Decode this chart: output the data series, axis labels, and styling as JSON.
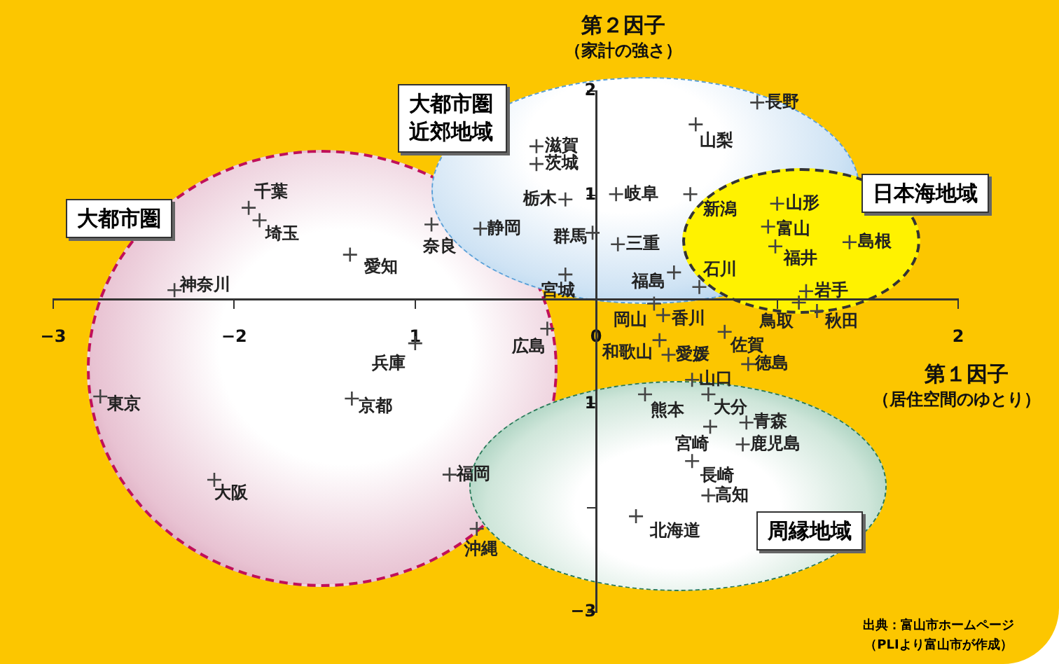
{
  "chart_data": {
    "type": "scatter",
    "xlabel": "第１因子",
    "ylabel": "第２因子",
    "xlim": [
      -3,
      2
    ],
    "ylim": [
      -3,
      2
    ],
    "xticks": [
      {
        "value": -3,
        "label": "−3"
      },
      {
        "value": -2,
        "label": "−2"
      },
      {
        "value": -1,
        "label": "1"
      },
      {
        "value": 0,
        "label": "0"
      },
      {
        "value": 1,
        "label": null
      },
      {
        "value": 2,
        "label": "2"
      }
    ],
    "yticks": [
      {
        "value": -3,
        "label": "−3"
      },
      {
        "value": -2,
        "label": null
      },
      {
        "value": -1,
        "label": "1"
      },
      {
        "value": 0,
        "label": null
      },
      {
        "value": 1,
        "label": "1"
      },
      {
        "value": 2,
        "label": "2"
      }
    ],
    "grid": false,
    "legend": false,
    "marker": "cross",
    "series": [
      {
        "color": "#444444",
        "x": [
          -1.92,
          -1.86,
          -1.36,
          -0.91,
          -0.64,
          -2.33,
          -0.27,
          -1.0,
          -2.74,
          -1.35,
          -0.81,
          -2.11,
          -0.66,
          -0.33,
          -0.33,
          -0.17,
          -0.02,
          0.11,
          0.12,
          -0.17,
          0.43,
          0.55,
          0.89,
          0.52,
          0.57,
          1.0,
          0.95,
          0.99,
          1.4,
          1.16,
          1.22,
          1.12,
          0.32,
          0.37,
          0.35,
          0.4,
          0.71,
          0.84,
          0.53,
          0.27,
          0.62,
          0.63,
          0.83,
          0.81,
          0.53,
          0.62,
          0.22
        ],
        "values": [
          0.88,
          0.76,
          0.43,
          0.72,
          0.68,
          0.09,
          -0.28,
          -0.42,
          -0.93,
          -0.95,
          -1.68,
          -1.73,
          -2.2,
          1.47,
          1.3,
          0.96,
          0.64,
          1.01,
          0.53,
          0.24,
          0.26,
          1.68,
          1.89,
          1.01,
          0.12,
          0.92,
          0.7,
          0.51,
          0.55,
          0.08,
          -0.11,
          -0.03,
          -0.04,
          -0.15,
          -0.39,
          -0.53,
          -0.31,
          -0.62,
          -0.77,
          -0.91,
          -0.91,
          -1.22,
          -1.18,
          -1.39,
          -1.55,
          -1.88,
          -2.08
        ],
        "value_labels": [
          "千葉",
          "埼玉",
          "愛知",
          "奈良",
          "静岡",
          "神奈川",
          "広島",
          "兵庫",
          "東京",
          "京都",
          "福岡",
          "大阪",
          "沖縄",
          "滋賀",
          "茨城",
          "栃木",
          "群馬",
          "岐阜",
          "三重",
          "宮城",
          "福島",
          "山梨",
          "長野",
          "新潟",
          "石川",
          "山形",
          "富山",
          "福井",
          "島根",
          "岩手",
          "秋田",
          "鳥取",
          "岡山",
          "香川",
          "和歌山",
          "愛媛",
          "佐賀",
          "徳島",
          "山口",
          "熊本",
          "大分",
          "宮崎",
          "青森",
          "鹿児島",
          "長崎",
          "高知",
          "北海道"
        ]
      }
    ],
    "annotations": [
      "大都市圏",
      "大都市圏近郊地域",
      "日本海地域",
      "周縁地域",
      "出典：富山市ホームページ",
      "（PLIより富山市が作成）",
      "（家計の強さ）",
      "（居住空間のゆとり）"
    ]
  }
}
